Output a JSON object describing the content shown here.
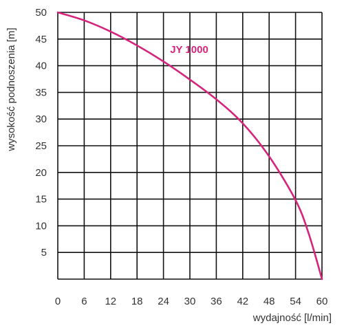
{
  "chart_data": {
    "type": "line",
    "title": "",
    "xlabel": "wydajność [l/min]",
    "ylabel": "wysokość podnoszenia [m]",
    "xlim": [
      0,
      60
    ],
    "ylim": [
      0,
      50
    ],
    "x_ticks": [
      0,
      6,
      12,
      18,
      24,
      30,
      36,
      42,
      48,
      54,
      60
    ],
    "y_ticks": [
      5,
      10,
      15,
      20,
      25,
      30,
      35,
      40,
      45,
      50
    ],
    "grid": true,
    "series": [
      {
        "name": "JY 1000",
        "color": "#d6247c",
        "x": [
          0,
          6,
          12,
          18,
          24,
          30,
          36,
          42,
          48,
          54,
          57,
          60
        ],
        "y": [
          50,
          48.5,
          46.4,
          43.8,
          40.8,
          37.4,
          33.7,
          29.2,
          23.0,
          14.8,
          8.5,
          0
        ]
      }
    ]
  }
}
